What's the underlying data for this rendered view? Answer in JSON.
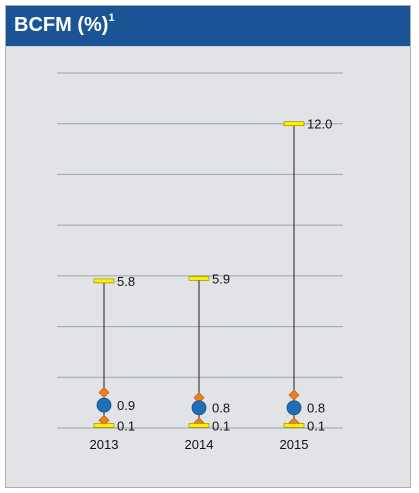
{
  "panel": {
    "title": "BCFM (%)",
    "title_superscript": "1"
  },
  "chart_data": {
    "type": "range",
    "title": "BCFM (%)",
    "categories": [
      "2013",
      "2014",
      "2015"
    ],
    "series": [
      {
        "marker": "max",
        "values": [
          5.8,
          5.9,
          12.0
        ],
        "labels": [
          "5.8",
          "5.9",
          "12.0"
        ]
      },
      {
        "marker": "upper",
        "values": [
          1.4,
          1.2,
          1.3
        ]
      },
      {
        "marker": "mean",
        "values": [
          0.9,
          0.8,
          0.8
        ],
        "labels": [
          "0.9",
          "0.8",
          "0.8"
        ]
      },
      {
        "marker": "lower",
        "values": [
          0.3,
          0.2,
          0.2
        ]
      },
      {
        "marker": "min",
        "values": [
          0.1,
          0.1,
          0.1
        ],
        "labels": [
          "0.1",
          "0.1",
          "0.1"
        ]
      }
    ],
    "ylim": [
      0,
      14
    ],
    "grid": true,
    "colors": {
      "max_min": "#ffee00",
      "max_min_edge": "#8a8400",
      "mean": "#1f6fb8",
      "mean_edge": "#15507f",
      "upper_lower": "#f07f1a",
      "upper_lower_edge": "#b2500c",
      "gridline": "#9ea2a8",
      "whisker": "#222222",
      "text": "#111111"
    }
  }
}
